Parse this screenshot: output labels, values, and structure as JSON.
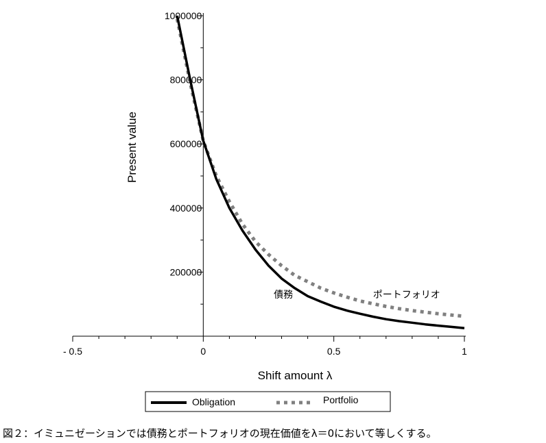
{
  "chart_data": {
    "type": "line",
    "xlabel": "Shift amount λ",
    "ylabel": "Present value",
    "xlim": [
      -0.5,
      1.0
    ],
    "ylim": [
      0,
      1000000
    ],
    "x_ticks": [
      {
        "value": -0.5,
        "label": "- 0.5"
      },
      {
        "value": 0,
        "label": "0"
      },
      {
        "value": 0.5,
        "label": "0.5"
      },
      {
        "value": 1,
        "label": "1"
      }
    ],
    "y_ticks": [
      {
        "value": 200000,
        "label": "200000"
      },
      {
        "value": 400000,
        "label": "400000"
      },
      {
        "value": 600000,
        "label": "600000"
      },
      {
        "value": 800000,
        "label": "800000"
      },
      {
        "value": 1000000,
        "label": "1000000"
      }
    ],
    "series": [
      {
        "name": "Obligation",
        "style": "solid",
        "color": "#000000",
        "x": [
          -0.1,
          -0.05,
          0,
          0.05,
          0.1,
          0.15,
          0.2,
          0.25,
          0.3,
          0.35,
          0.4,
          0.45,
          0.5,
          0.55,
          0.6,
          0.65,
          0.7,
          0.75,
          0.8,
          0.85,
          0.9,
          0.95,
          1.0
        ],
        "values": [
          1000000,
          800000,
          610000,
          490000,
          400000,
          330000,
          270000,
          220000,
          180000,
          150000,
          125000,
          108000,
          92000,
          80000,
          70000,
          61000,
          53000,
          47000,
          42000,
          37000,
          33000,
          29000,
          25000
        ]
      },
      {
        "name": "Portfolio",
        "style": "dotted",
        "color": "#808080",
        "x": [
          -0.1,
          -0.05,
          0,
          0.05,
          0.1,
          0.15,
          0.2,
          0.25,
          0.3,
          0.35,
          0.4,
          0.45,
          0.5,
          0.55,
          0.6,
          0.65,
          0.7,
          0.75,
          0.8,
          0.85,
          0.9,
          0.95,
          1.0
        ],
        "values": [
          990000,
          790000,
          610000,
          500000,
          420000,
          350000,
          295000,
          255000,
          220000,
          190000,
          170000,
          150000,
          135000,
          122000,
          110000,
          101000,
          93000,
          86000,
          80000,
          75000,
          70000,
          66000,
          62000
        ]
      }
    ],
    "annotations": [
      {
        "text": "債務",
        "x": 0.27,
        "y": 130000
      },
      {
        "text": "ポートフォリオ",
        "x": 0.65,
        "y": 130000
      }
    ],
    "legend": {
      "placement": "bottom",
      "entries": [
        "Obligation",
        "Portfolio"
      ]
    },
    "grid": false
  },
  "caption": "図２：イミュニゼーションでは債務とポートフォリオの現在価値をλ＝0において等しくする。"
}
